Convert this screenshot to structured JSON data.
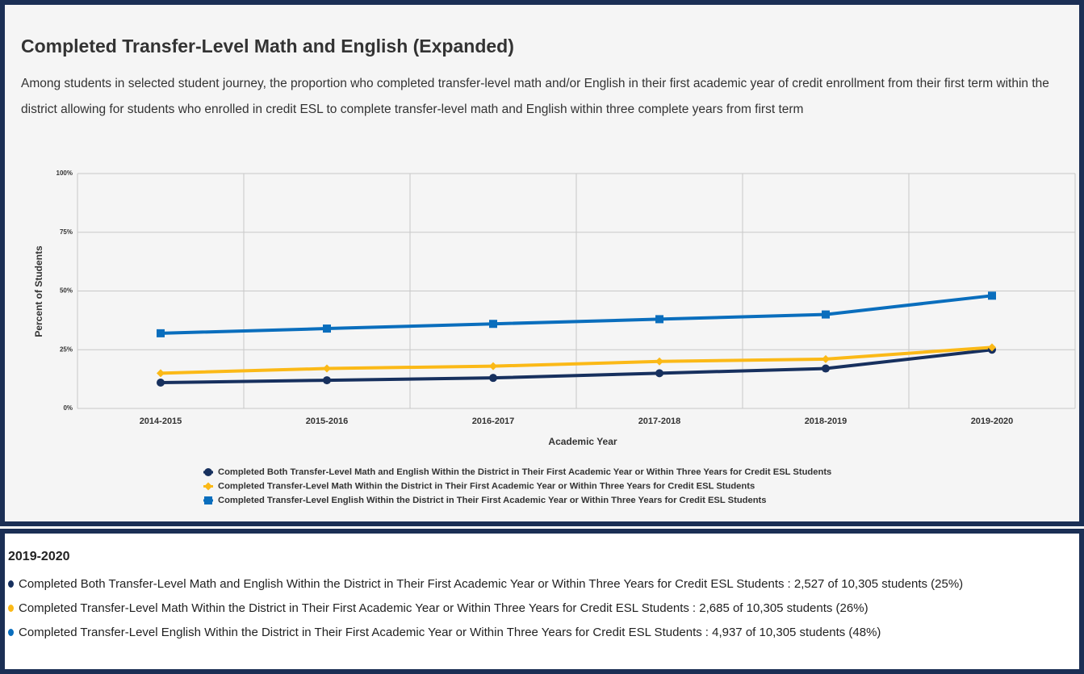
{
  "chart_data": {
    "type": "line",
    "title": "Completed Transfer-Level Math and English (Expanded)",
    "subtitle": "Among students in selected student journey, the proportion who completed transfer-level math and/or English in their first academic year of credit enrollment from their first term within the district allowing for students who enrolled in credit ESL to complete transfer-level math and English within three complete years from first term",
    "xlabel": "Academic Year",
    "ylabel": "Percent of Students",
    "categories": [
      "2014-2015",
      "2015-2016",
      "2016-2017",
      "2017-2018",
      "2018-2019",
      "2019-2020"
    ],
    "series": [
      {
        "name": "Completed Both Transfer-Level Math and English Within the District in Their First Academic Year or Within Three Years for Credit ESL Students",
        "color": "#17305e",
        "marker": "circle",
        "values": [
          11,
          12,
          13,
          15,
          17,
          25
        ]
      },
      {
        "name": "Completed Transfer-Level Math Within the District in Their First Academic Year or Within Three Years for Credit ESL Students",
        "color": "#fbb917",
        "marker": "diamond",
        "values": [
          15,
          17,
          18,
          20,
          21,
          26
        ]
      },
      {
        "name": "Completed Transfer-Level English Within the District in Their First Academic Year or Within Three Years for Credit ESL Students",
        "color": "#0a6ebd",
        "marker": "square",
        "values": [
          32,
          34,
          36,
          38,
          40,
          48
        ]
      }
    ],
    "ylim": [
      0,
      100
    ],
    "yticks": [
      {
        "value": 0,
        "label": "0%"
      },
      {
        "value": 25,
        "label": "25%"
      },
      {
        "value": 50,
        "label": "50%"
      },
      {
        "value": 75,
        "label": "75%"
      },
      {
        "value": 100,
        "label": "100%"
      }
    ],
    "grid": true,
    "legend": "bottom"
  },
  "tooltip": {
    "items": [
      {
        "detail": ": 2,527 of 10,305 students (25%)"
      },
      {
        "detail": ": 2,685 of 10,305 students (26%)"
      },
      {
        "detail": ": 4,937 of 10,305 students (48%)"
      }
    ]
  }
}
